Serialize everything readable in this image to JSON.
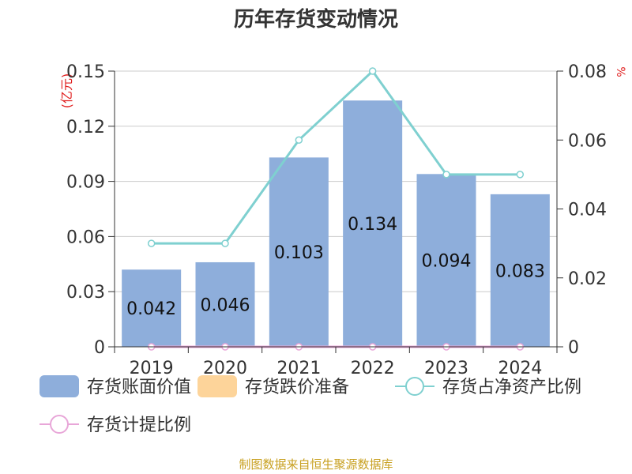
{
  "title": "历年存货变动情况",
  "source": "制图数据来自恒生聚源数据库",
  "left_unit": "(亿元)",
  "right_unit": "%",
  "chart_data": {
    "type": "bar",
    "categories": [
      "2019",
      "2020",
      "2021",
      "2022",
      "2023",
      "2024"
    ],
    "series": [
      {
        "name": "存货账面价值",
        "kind": "bar",
        "axis": "left",
        "color": "#8eaedb",
        "values": [
          0.042,
          0.046,
          0.103,
          0.134,
          0.094,
          0.083
        ],
        "labels": [
          "0.042",
          "0.046",
          "0.103",
          "0.134",
          "0.094",
          "0.083"
        ]
      },
      {
        "name": "存货跌价准备",
        "kind": "bar",
        "axis": "left",
        "color": "#fdd49a",
        "values": [
          0,
          0,
          0,
          0,
          0,
          0
        ]
      },
      {
        "name": "存货占净资产比例",
        "kind": "line",
        "axis": "right",
        "color": "#7fd0d0",
        "values": [
          0.03,
          0.03,
          0.06,
          0.08,
          0.05,
          0.05
        ]
      },
      {
        "name": "存货计提比例",
        "kind": "line",
        "axis": "right",
        "color": "#e8a6d8",
        "values": [
          0,
          0,
          0,
          0,
          0,
          0
        ]
      }
    ],
    "y_left": {
      "min": 0,
      "max": 0.15,
      "ticks": [
        "0",
        "0.03",
        "0.06",
        "0.09",
        "0.12",
        "0.15"
      ]
    },
    "y_right": {
      "min": 0,
      "max": 0.08,
      "ticks": [
        "0",
        "0.02",
        "0.04",
        "0.06",
        "0.08"
      ]
    },
    "legend_position": "bottom",
    "grid": true
  }
}
